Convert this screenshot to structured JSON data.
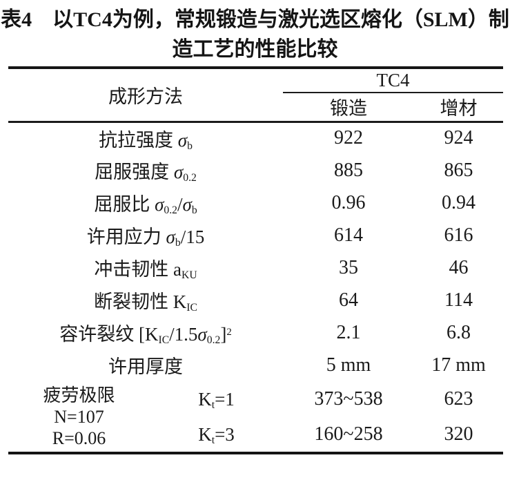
{
  "title": {
    "line1": "表4　以TC4为例，常规锻造与激光选区熔化（SLM）制",
    "line2": "造工艺的性能比较"
  },
  "colors": {
    "text": "#1a1a1a",
    "rule": "#151515",
    "background": "#ffffff"
  },
  "table": {
    "header": {
      "method": "成形方法",
      "group": "TC4",
      "columns": [
        "锻造",
        "增材"
      ]
    },
    "rows": [
      {
        "label": [
          {
            "t": "抗拉强度 "
          },
          {
            "t": "σ",
            "i": true
          },
          {
            "t": "b",
            "sub": true
          }
        ],
        "values": [
          "922",
          "924"
        ]
      },
      {
        "label": [
          {
            "t": "屈服强度 "
          },
          {
            "t": "σ",
            "i": true
          },
          {
            "t": "0.2",
            "sub": true
          }
        ],
        "values": [
          "885",
          "865"
        ]
      },
      {
        "label": [
          {
            "t": "屈服比 "
          },
          {
            "t": "σ",
            "i": true
          },
          {
            "t": "0.2",
            "sub": true
          },
          {
            "t": "/"
          },
          {
            "t": "σ",
            "i": true
          },
          {
            "t": "b",
            "sub": true
          }
        ],
        "values": [
          "0.96",
          "0.94"
        ]
      },
      {
        "label": [
          {
            "t": "许用应力 "
          },
          {
            "t": "σ",
            "i": true
          },
          {
            "t": "b",
            "sub": true
          },
          {
            "t": "/15"
          }
        ],
        "values": [
          "614",
          "616"
        ]
      },
      {
        "label": [
          {
            "t": "冲击韧性 a"
          },
          {
            "t": "KU",
            "sub": true
          }
        ],
        "values": [
          "35",
          "46"
        ]
      },
      {
        "label": [
          {
            "t": "断裂韧性 K"
          },
          {
            "t": "IC",
            "sub": true
          }
        ],
        "values": [
          "64",
          "114"
        ]
      },
      {
        "label": [
          {
            "t": "容许裂纹 [K"
          },
          {
            "t": "IC",
            "sub": true
          },
          {
            "t": "/1.5"
          },
          {
            "t": "σ",
            "i": true
          },
          {
            "t": "0.2",
            "sub": true
          },
          {
            "t": "]"
          },
          {
            "t": "2",
            "sup": true
          }
        ],
        "values": [
          "2.1",
          "6.8"
        ]
      },
      {
        "label": [
          {
            "t": "许用厚度"
          }
        ],
        "values": [
          "5 mm",
          "17 mm"
        ]
      }
    ],
    "fatigue": {
      "left_lines": [
        "疲劳极限",
        "N=107",
        "R=0.06"
      ],
      "rows": [
        {
          "label": [
            {
              "t": "K"
            },
            {
              "t": "t",
              "sub": true
            },
            {
              "t": "=1"
            }
          ],
          "values": [
            "373~538",
            "623"
          ]
        },
        {
          "label": [
            {
              "t": "K"
            },
            {
              "t": "t",
              "sub": true
            },
            {
              "t": "=3"
            }
          ],
          "values": [
            "160~258",
            "320"
          ]
        }
      ]
    }
  }
}
